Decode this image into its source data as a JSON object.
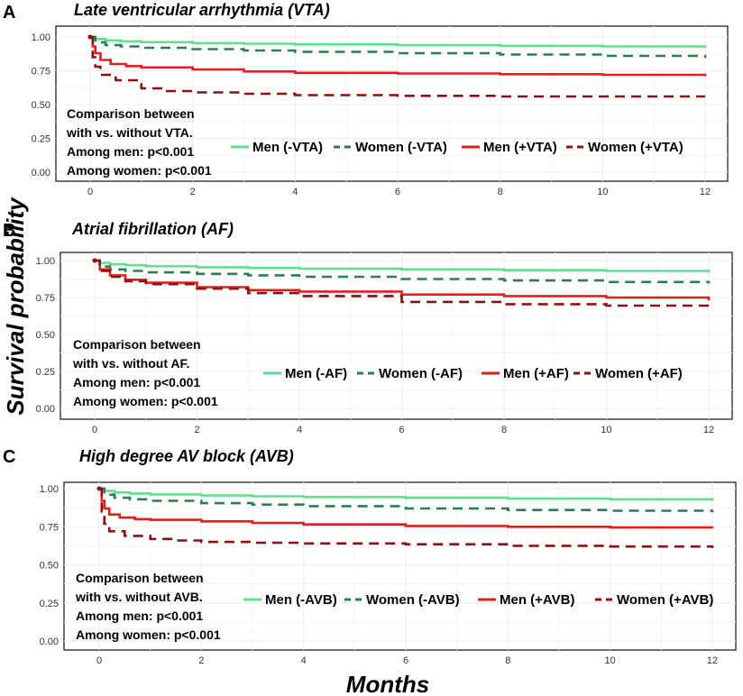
{
  "figure": {
    "ylabel": "Survival probability",
    "xlabel": "Months"
  },
  "colors": {
    "men_neg": "#5fe08f",
    "women_neg": "#2e7d4f",
    "men_pos": "#e02020",
    "women_pos": "#8b1010"
  },
  "chart_data": [
    {
      "type": "line",
      "panel": "A",
      "title": "Late ventricular arrhythmia (VTA)",
      "xlabel": "Months",
      "ylabel": "Survival probability",
      "xlim": [
        0,
        12
      ],
      "ylim": [
        0,
        1
      ],
      "x_ticks": [
        "0",
        "2",
        "4",
        "6",
        "8",
        "10",
        "12"
      ],
      "y_ticks": [
        "0.00",
        "0.25",
        "0.50",
        "0.75",
        "1.00"
      ],
      "annotation": [
        "Comparison between",
        "with vs. without VTA.",
        "Among men: p<0.001",
        "Among women: p<0.001"
      ],
      "series": [
        {
          "name": "Men (-VTA)",
          "style": "solid",
          "color": "#5fe08f",
          "x": [
            0,
            0.1,
            0.3,
            0.6,
            1,
            2,
            3,
            4,
            6,
            8,
            10,
            12
          ],
          "y": [
            1.0,
            0.985,
            0.975,
            0.968,
            0.962,
            0.955,
            0.95,
            0.945,
            0.94,
            0.935,
            0.93,
            0.92
          ]
        },
        {
          "name": "Women (-VTA)",
          "style": "dashed",
          "color": "#2e7d4f",
          "x": [
            0,
            0.1,
            0.3,
            0.6,
            1,
            2,
            3,
            4,
            6,
            8,
            10,
            12
          ],
          "y": [
            1.0,
            0.96,
            0.94,
            0.93,
            0.92,
            0.91,
            0.9,
            0.89,
            0.88,
            0.87,
            0.86,
            0.845
          ]
        },
        {
          "name": "Men (+VTA)",
          "style": "solid",
          "color": "#e02020",
          "x": [
            0,
            0.05,
            0.1,
            0.2,
            0.4,
            0.7,
            1,
            2,
            3,
            4,
            6,
            8,
            10,
            12
          ],
          "y": [
            1.0,
            0.93,
            0.88,
            0.83,
            0.8,
            0.785,
            0.775,
            0.76,
            0.745,
            0.735,
            0.73,
            0.725,
            0.72,
            0.71
          ]
        },
        {
          "name": "Women (+VTA)",
          "style": "dashed",
          "color": "#8b1010",
          "x": [
            0,
            0.05,
            0.1,
            0.2,
            0.5,
            1,
            1.5,
            2,
            3,
            4,
            6,
            8,
            10,
            12
          ],
          "y": [
            1.0,
            0.85,
            0.78,
            0.72,
            0.68,
            0.62,
            0.6,
            0.59,
            0.58,
            0.57,
            0.565,
            0.56,
            0.56,
            0.56
          ]
        }
      ]
    },
    {
      "type": "line",
      "panel": "B",
      "title": "Atrial fibrillation (AF)",
      "xlabel": "Months",
      "ylabel": "Survival probability",
      "xlim": [
        0,
        12
      ],
      "ylim": [
        0,
        1
      ],
      "x_ticks": [
        "0",
        "2",
        "4",
        "6",
        "8",
        "10",
        "12"
      ],
      "y_ticks": [
        "0.00",
        "0.25",
        "0.50",
        "0.75",
        "1.00"
      ],
      "annotation": [
        "Comparison between",
        "with vs. without AF.",
        "Among men: p<0.001",
        "Among women: p<0.001"
      ],
      "series": [
        {
          "name": "Men (-AF)",
          "style": "solid",
          "color": "#5fe08f",
          "x": [
            0,
            0.1,
            0.3,
            0.6,
            1,
            2,
            3,
            4,
            6,
            8,
            10,
            12
          ],
          "y": [
            1.0,
            0.985,
            0.975,
            0.968,
            0.962,
            0.955,
            0.95,
            0.945,
            0.94,
            0.935,
            0.93,
            0.92
          ]
        },
        {
          "name": "Women (-AF)",
          "style": "dashed",
          "color": "#2e7d4f",
          "x": [
            0,
            0.1,
            0.3,
            0.6,
            1,
            2,
            3,
            4,
            6,
            8,
            10,
            12
          ],
          "y": [
            1.0,
            0.96,
            0.94,
            0.93,
            0.92,
            0.91,
            0.9,
            0.89,
            0.875,
            0.865,
            0.855,
            0.845
          ]
        },
        {
          "name": "Men (+AF)",
          "style": "solid",
          "color": "#e02020",
          "x": [
            0,
            0.1,
            0.3,
            0.6,
            1,
            2,
            3,
            4,
            6,
            8,
            10,
            12
          ],
          "y": [
            1.0,
            0.94,
            0.9,
            0.87,
            0.85,
            0.82,
            0.8,
            0.79,
            0.77,
            0.76,
            0.75,
            0.73
          ]
        },
        {
          "name": "Women (+AF)",
          "style": "dashed",
          "color": "#8b1010",
          "x": [
            0,
            0.1,
            0.3,
            0.6,
            1,
            2,
            3,
            4,
            6,
            8,
            10,
            12
          ],
          "y": [
            1.0,
            0.93,
            0.89,
            0.86,
            0.84,
            0.81,
            0.78,
            0.76,
            0.72,
            0.705,
            0.695,
            0.68
          ]
        }
      ]
    },
    {
      "type": "line",
      "panel": "C",
      "title": "High degree AV block (AVB)",
      "xlabel": "Months",
      "ylabel": "Survival probability",
      "xlim": [
        0,
        12
      ],
      "ylim": [
        0,
        1
      ],
      "x_ticks": [
        "0",
        "2",
        "4",
        "6",
        "8",
        "10",
        "12"
      ],
      "y_ticks": [
        "0.00",
        "0.25",
        "0.50",
        "0.75",
        "1.00"
      ],
      "annotation": [
        "Comparison between",
        "with vs. without AVB.",
        "Among men: p<0.001",
        "Among women: p<0.001"
      ],
      "series": [
        {
          "name": "Men (-AVB)",
          "style": "solid",
          "color": "#5fe08f",
          "x": [
            0,
            0.1,
            0.3,
            0.6,
            1,
            2,
            3,
            4,
            6,
            8,
            10,
            12
          ],
          "y": [
            1.0,
            0.985,
            0.975,
            0.968,
            0.962,
            0.955,
            0.95,
            0.945,
            0.94,
            0.935,
            0.93,
            0.92
          ]
        },
        {
          "name": "Women (-AVB)",
          "style": "dashed",
          "color": "#2e7d4f",
          "x": [
            0,
            0.1,
            0.3,
            0.6,
            1,
            2,
            3,
            4,
            6,
            8,
            10,
            12
          ],
          "y": [
            1.0,
            0.96,
            0.94,
            0.93,
            0.92,
            0.905,
            0.895,
            0.885,
            0.87,
            0.86,
            0.855,
            0.845
          ]
        },
        {
          "name": "Men (+AVB)",
          "style": "solid",
          "color": "#e02020",
          "x": [
            0,
            0.05,
            0.1,
            0.2,
            0.4,
            0.7,
            1,
            2,
            3,
            4,
            6,
            8,
            10,
            12
          ],
          "y": [
            1.0,
            0.92,
            0.87,
            0.83,
            0.81,
            0.8,
            0.795,
            0.785,
            0.775,
            0.765,
            0.755,
            0.75,
            0.745,
            0.74
          ]
        },
        {
          "name": "Women (+AVB)",
          "style": "dashed",
          "color": "#8b1010",
          "x": [
            0,
            0.05,
            0.1,
            0.2,
            0.5,
            1,
            1.5,
            2,
            3,
            4,
            6,
            8,
            10,
            12
          ],
          "y": [
            1.0,
            0.85,
            0.77,
            0.72,
            0.69,
            0.67,
            0.66,
            0.65,
            0.645,
            0.64,
            0.635,
            0.625,
            0.62,
            0.61
          ]
        }
      ]
    }
  ]
}
